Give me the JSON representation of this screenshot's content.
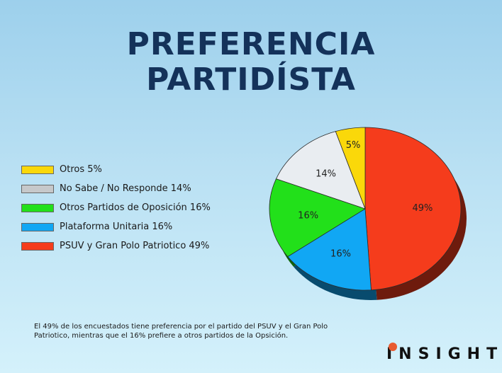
{
  "title": {
    "line1": "PREFERENCIA",
    "line2": "PARTIDÍSTA"
  },
  "chart_data": {
    "type": "pie",
    "slices": [
      {
        "name": "PSUV y Gran Polo Patriotico",
        "value": 49,
        "label": "49%",
        "color": "#f53c1c"
      },
      {
        "name": "Plataforma Unitaria",
        "value": 16,
        "label": "16%",
        "color": "#11a7f4"
      },
      {
        "name": "Otros Partidos de Oposición",
        "value": 16,
        "label": "16%",
        "color": "#22e01a"
      },
      {
        "name": "No Sabe / No Responde",
        "value": 14,
        "label": "14%",
        "color": "#e9edf1"
      },
      {
        "name": "Otros",
        "value": 5,
        "label": "5%",
        "color": "#fad80a"
      }
    ]
  },
  "legend": [
    {
      "label": "Otros 5%",
      "color": "#fad80a"
    },
    {
      "label": "No Sabe / No Responde 14%",
      "color": "#c6c8ca"
    },
    {
      "label": "Otros Partidos de Oposición 16%",
      "color": "#22e01a"
    },
    {
      "label": "Plataforma Unitaria 16%",
      "color": "#11a7f4"
    },
    {
      "label": "PSUV y Gran Polo Patriotico 49%",
      "color": "#f53c1c"
    }
  ],
  "caption": "El 49% de los encuestados tiene preferencia por el partido del PSUV y el Gran Polo Patriotico, mientras que el 16% prefiere a otros partidos de la Opsición.",
  "logo": {
    "text": "INSIGHT",
    "mark_color": "#e85a30"
  }
}
